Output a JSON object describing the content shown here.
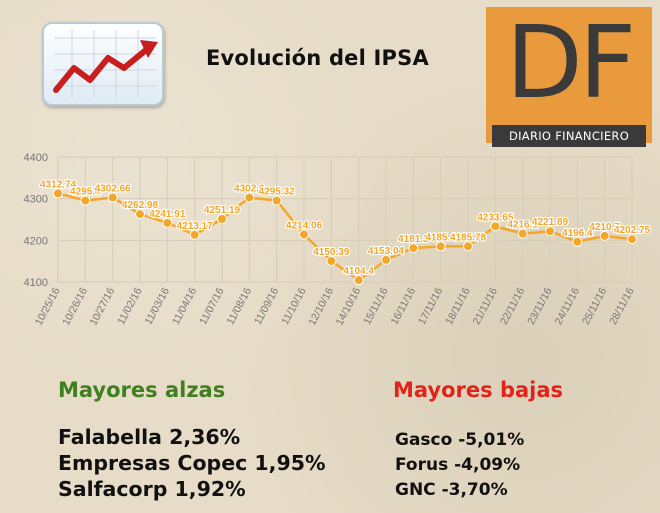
{
  "header": {
    "title": "Evolución del IPSA",
    "logo_letters": "DF",
    "logo_band": "DIARIO FINANCIERO"
  },
  "colors": {
    "line": "#f4a62a",
    "marker": "#f4a62a",
    "grid": "#d8ccb5",
    "label": "#f4a62a",
    "alzas": "#3f7f1e",
    "bajas": "#e2231a"
  },
  "chart_data": {
    "type": "line",
    "categories": [
      "10/25/16",
      "10/26/16",
      "10/27/16",
      "11/02/16",
      "11/03/16",
      "11/04/16",
      "11/07/16",
      "11/08/16",
      "11/09/16",
      "11/10/16",
      "12/10/16",
      "14/10/16",
      "15/11/16",
      "16/11/16",
      "17/11/16",
      "18/11/16",
      "21/11/16",
      "22/11/16",
      "23/11/16",
      "24/11/16",
      "25/11/16",
      "28/11/16"
    ],
    "values": [
      4312.74,
      4295.4,
      4302.66,
      4262.98,
      4241.91,
      4213.17,
      4251.19,
      4302.6,
      4295.32,
      4214.06,
      4150.39,
      4104.4,
      4153.04,
      4181.3,
      4185.4,
      4185.78,
      4233.65,
      4216.1,
      4221.89,
      4196.4,
      4210.7,
      4202.75
    ],
    "data_labels": [
      "4312.74",
      "4295.4",
      "4302.66",
      "4262.98",
      "4241.91",
      "4213.17",
      "4251.19",
      "4302.6",
      "4295.32",
      "4214.06",
      "4150.39",
      "4104.4",
      "4153.04",
      "4181.3",
      "4185.4",
      "4185.78",
      "4233.65",
      "4216.1",
      "4221.89",
      "4196.4",
      "4210.7",
      "4202.75"
    ],
    "yticks": [
      4100,
      4200,
      4300,
      4400
    ],
    "ytick_labels": [
      "4100",
      "4200",
      "4300",
      "4400"
    ],
    "ylim": [
      4100,
      4400
    ],
    "grid": true,
    "legend": "none"
  },
  "alzas": {
    "title": "Mayores alzas",
    "items": [
      "Falabella 2,36%",
      "Empresas Copec 1,95%",
      "Salfacorp 1,92%"
    ]
  },
  "bajas": {
    "title": "Mayores bajas",
    "items": [
      "Gasco -5,01%",
      "Forus -4,09%",
      "GNC -3,70%"
    ]
  }
}
